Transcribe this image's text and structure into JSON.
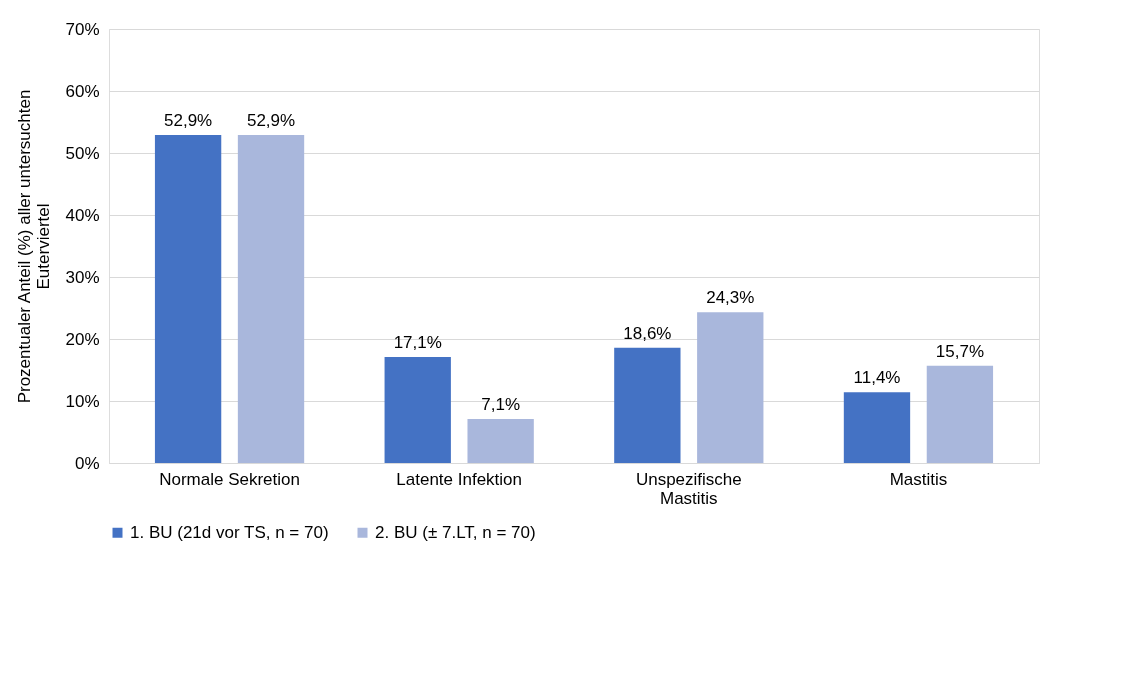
{
  "chart_data": {
    "type": "bar",
    "ylabel": "Prozentualer Anteil (%) aller untersuchten Euterviertel",
    "categories": [
      "Normale Sekretion",
      "Latente Infektion",
      "Unspezifische Mastitis",
      "Mastitis"
    ],
    "series": [
      {
        "name": "1. BU (21d vor TS, n = 70)",
        "color": "#4472c4",
        "values": [
          52.9,
          17.1,
          18.6,
          11.4
        ],
        "value_labels": [
          "52,9%",
          "17,1%",
          "18,6%",
          "11,4%"
        ]
      },
      {
        "name": "2. BU (± 7.LT, n = 70)",
        "color": "#a9b7dc",
        "values": [
          52.9,
          7.1,
          24.3,
          15.7
        ],
        "value_labels": [
          "52,9%",
          "7,1%",
          "24,3%",
          "15,7%"
        ]
      }
    ],
    "ylim": [
      0,
      70
    ],
    "yticks": [
      {
        "value": 0,
        "label": "0%"
      },
      {
        "value": 10,
        "label": "10%"
      },
      {
        "value": 20,
        "label": "20%"
      },
      {
        "value": 30,
        "label": "30%"
      },
      {
        "value": 40,
        "label": "40%"
      },
      {
        "value": 50,
        "label": "50%"
      },
      {
        "value": 60,
        "label": "60%"
      },
      {
        "value": 70,
        "label": "70%"
      }
    ],
    "grid": "y",
    "legend": "bottom"
  }
}
